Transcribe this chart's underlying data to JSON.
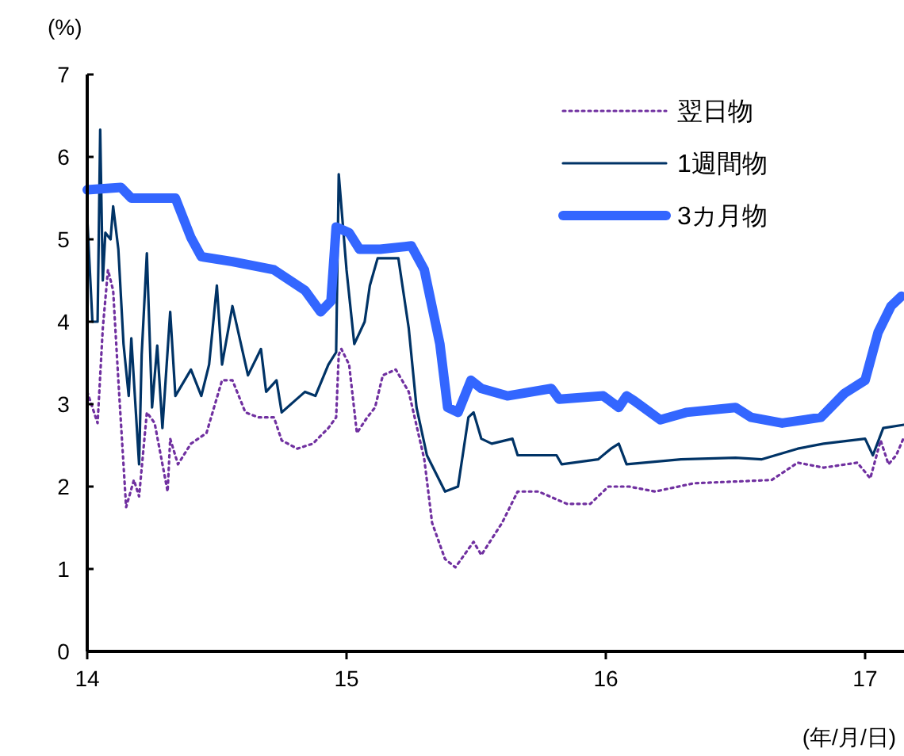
{
  "chart_data": {
    "type": "line",
    "ylabel": "(%)",
    "xlabel": "(年/月/日)",
    "xlim": [
      14,
      17.15
    ],
    "xticks": [
      {
        "value": 14,
        "label": "14"
      },
      {
        "value": 15,
        "label": "15"
      },
      {
        "value": 16,
        "label": "16"
      },
      {
        "value": 17,
        "label": "17"
      }
    ],
    "ylim": [
      0,
      7
    ],
    "yticks": [
      0,
      1,
      2,
      3,
      4,
      5,
      6,
      7
    ],
    "grid": false,
    "legend": "top right",
    "series": [
      {
        "name": "翌日物",
        "color": "#7030a0",
        "line_style": "dotted",
        "x": [
          14.0,
          14.04,
          14.06,
          14.08,
          14.1,
          14.12,
          14.15,
          14.18,
          14.2,
          14.23,
          14.26,
          14.31,
          14.32,
          14.35,
          14.4,
          14.46,
          14.52,
          14.56,
          14.61,
          14.66,
          14.72,
          14.75,
          14.81,
          14.87,
          14.93,
          14.96,
          14.97,
          14.98,
          15.01,
          15.04,
          15.08,
          15.11,
          15.14,
          15.19,
          15.24,
          15.3,
          15.33,
          15.38,
          15.42,
          15.49,
          15.52,
          15.6,
          15.66,
          15.74,
          15.85,
          15.94,
          16.01,
          16.09,
          16.19,
          16.34,
          16.64,
          16.74,
          16.84,
          16.97,
          17.02,
          17.06,
          17.09,
          17.12,
          17.15
        ],
        "values": [
          3.15,
          2.77,
          3.92,
          4.63,
          4.38,
          3.29,
          1.75,
          2.08,
          1.88,
          2.9,
          2.77,
          1.94,
          2.58,
          2.27,
          2.52,
          2.65,
          3.29,
          3.29,
          2.9,
          2.84,
          2.84,
          2.56,
          2.46,
          2.52,
          2.71,
          2.84,
          3.6,
          3.67,
          3.48,
          2.65,
          2.84,
          2.96,
          3.35,
          3.42,
          3.15,
          2.33,
          1.56,
          1.12,
          1.02,
          1.33,
          1.17,
          1.56,
          1.94,
          1.94,
          1.79,
          1.79,
          2.0,
          2.0,
          1.94,
          2.04,
          2.08,
          2.29,
          2.23,
          2.29,
          2.1,
          2.56,
          2.27,
          2.38,
          2.6
        ]
      },
      {
        "name": "1週間物",
        "color": "#003366",
        "line_style": "solid",
        "x": [
          14.0,
          14.01,
          14.02,
          14.04,
          14.05,
          14.06,
          14.07,
          14.09,
          14.1,
          14.12,
          14.14,
          14.16,
          14.17,
          14.2,
          14.21,
          14.23,
          14.25,
          14.27,
          14.29,
          14.32,
          14.34,
          14.4,
          14.44,
          14.47,
          14.5,
          14.52,
          14.56,
          14.62,
          14.67,
          14.69,
          14.73,
          14.75,
          14.8,
          14.84,
          14.88,
          14.93,
          14.96,
          14.97,
          15.0,
          15.03,
          15.07,
          15.09,
          15.12,
          15.2,
          15.24,
          15.27,
          15.31,
          15.38,
          15.43,
          15.47,
          15.49,
          15.52,
          15.56,
          15.64,
          15.66,
          15.81,
          15.83,
          15.97,
          16.02,
          16.05,
          16.08,
          16.29,
          16.5,
          16.6,
          16.74,
          16.84,
          17.0,
          17.03,
          17.07,
          17.15
        ],
        "values": [
          5.27,
          4.63,
          4.0,
          4.0,
          6.33,
          4.5,
          5.08,
          5.0,
          5.4,
          4.88,
          3.73,
          3.1,
          3.8,
          2.27,
          3.6,
          4.83,
          2.96,
          3.71,
          2.71,
          4.12,
          3.1,
          3.42,
          3.1,
          3.48,
          4.44,
          3.48,
          4.19,
          3.35,
          3.67,
          3.15,
          3.29,
          2.9,
          3.04,
          3.15,
          3.1,
          3.48,
          3.63,
          5.79,
          4.63,
          3.73,
          4.0,
          4.44,
          4.77,
          4.77,
          3.92,
          2.96,
          2.38,
          1.94,
          2.0,
          2.84,
          2.9,
          2.58,
          2.52,
          2.58,
          2.38,
          2.38,
          2.27,
          2.33,
          2.46,
          2.52,
          2.27,
          2.33,
          2.35,
          2.33,
          2.46,
          2.52,
          2.58,
          2.38,
          2.71,
          2.75
        ]
      },
      {
        "name": "3カ月物",
        "color": "#3366ff",
        "line_style": "solid",
        "x": [
          14.0,
          14.13,
          14.17,
          14.34,
          14.4,
          14.44,
          14.56,
          14.72,
          14.84,
          14.9,
          14.94,
          14.96,
          15.01,
          15.05,
          15.13,
          15.25,
          15.3,
          15.36,
          15.39,
          15.43,
          15.48,
          15.52,
          15.62,
          15.79,
          15.82,
          15.99,
          16.05,
          16.08,
          16.11,
          16.21,
          16.31,
          16.5,
          16.56,
          16.68,
          16.83,
          16.92,
          17.0,
          17.05,
          17.1,
          17.14
        ],
        "values": [
          5.6,
          5.63,
          5.5,
          5.5,
          5.02,
          4.79,
          4.73,
          4.63,
          4.38,
          4.12,
          4.25,
          5.15,
          5.08,
          4.88,
          4.88,
          4.92,
          4.63,
          3.73,
          2.96,
          2.9,
          3.29,
          3.19,
          3.1,
          3.19,
          3.06,
          3.1,
          2.96,
          3.1,
          3.04,
          2.81,
          2.9,
          2.96,
          2.84,
          2.77,
          2.84,
          3.13,
          3.29,
          3.87,
          4.19,
          4.31
        ]
      }
    ]
  }
}
